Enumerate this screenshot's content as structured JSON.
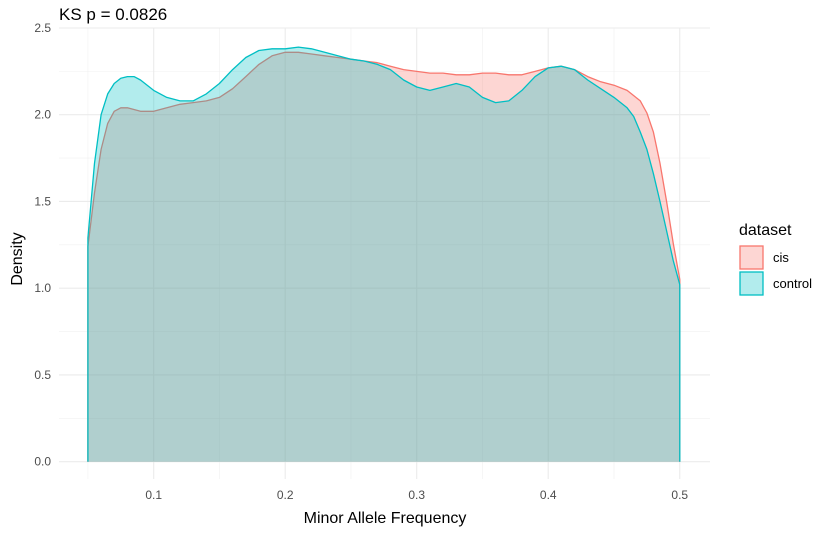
{
  "chart_data": {
    "type": "area",
    "title": "KS p = 0.0826",
    "xlabel": "Minor Allele Frequency",
    "ylabel": "Density",
    "xlim": [
      0.028,
      0.523
    ],
    "ylim": [
      -0.1,
      2.5
    ],
    "x_ticks": [
      0.1,
      0.2,
      0.3,
      0.4,
      0.5
    ],
    "x_tick_labels": [
      "0.1",
      "0.2",
      "0.3",
      "0.4",
      "0.5"
    ],
    "y_ticks": [
      0.0,
      0.5,
      1.0,
      1.5,
      2.0,
      2.5
    ],
    "y_tick_labels": [
      "0.0",
      "0.5",
      "1.0",
      "1.5",
      "2.0",
      "2.5"
    ],
    "grid": true,
    "legend_title": "dataset",
    "legend_position": "right",
    "colors": {
      "cis": "#F8766D",
      "control": "#00BFC4"
    },
    "series": [
      {
        "name": "cis",
        "x": [
          0.05,
          0.055,
          0.06,
          0.065,
          0.07,
          0.075,
          0.08,
          0.09,
          0.1,
          0.11,
          0.12,
          0.13,
          0.14,
          0.15,
          0.16,
          0.17,
          0.18,
          0.19,
          0.2,
          0.21,
          0.22,
          0.23,
          0.24,
          0.25,
          0.26,
          0.27,
          0.28,
          0.29,
          0.3,
          0.31,
          0.32,
          0.33,
          0.34,
          0.35,
          0.36,
          0.37,
          0.38,
          0.39,
          0.4,
          0.41,
          0.42,
          0.43,
          0.44,
          0.45,
          0.46,
          0.47,
          0.475,
          0.48,
          0.485,
          0.49,
          0.495,
          0.5
        ],
        "y": [
          1.24,
          1.55,
          1.8,
          1.95,
          2.02,
          2.04,
          2.04,
          2.02,
          2.02,
          2.04,
          2.06,
          2.07,
          2.08,
          2.1,
          2.15,
          2.22,
          2.29,
          2.34,
          2.36,
          2.36,
          2.35,
          2.34,
          2.33,
          2.32,
          2.31,
          2.3,
          2.28,
          2.26,
          2.25,
          2.24,
          2.24,
          2.23,
          2.23,
          2.24,
          2.24,
          2.23,
          2.23,
          2.25,
          2.27,
          2.28,
          2.26,
          2.22,
          2.19,
          2.17,
          2.14,
          2.08,
          2.01,
          1.9,
          1.72,
          1.5,
          1.26,
          1.05
        ]
      },
      {
        "name": "control",
        "x": [
          0.05,
          0.055,
          0.06,
          0.065,
          0.07,
          0.075,
          0.08,
          0.085,
          0.09,
          0.1,
          0.11,
          0.12,
          0.13,
          0.14,
          0.15,
          0.16,
          0.17,
          0.18,
          0.19,
          0.2,
          0.21,
          0.22,
          0.23,
          0.24,
          0.25,
          0.26,
          0.27,
          0.28,
          0.29,
          0.3,
          0.31,
          0.32,
          0.33,
          0.34,
          0.35,
          0.36,
          0.37,
          0.38,
          0.39,
          0.4,
          0.41,
          0.42,
          0.43,
          0.44,
          0.45,
          0.46,
          0.465,
          0.47,
          0.475,
          0.48,
          0.485,
          0.49,
          0.495,
          0.5
        ],
        "y": [
          1.29,
          1.72,
          2.0,
          2.12,
          2.18,
          2.21,
          2.22,
          2.22,
          2.2,
          2.14,
          2.1,
          2.08,
          2.08,
          2.12,
          2.18,
          2.26,
          2.33,
          2.37,
          2.38,
          2.38,
          2.39,
          2.38,
          2.36,
          2.34,
          2.32,
          2.31,
          2.29,
          2.26,
          2.2,
          2.16,
          2.14,
          2.16,
          2.18,
          2.16,
          2.1,
          2.07,
          2.08,
          2.14,
          2.22,
          2.27,
          2.28,
          2.26,
          2.2,
          2.15,
          2.1,
          2.04,
          1.99,
          1.9,
          1.8,
          1.66,
          1.5,
          1.33,
          1.16,
          1.02
        ]
      }
    ]
  }
}
